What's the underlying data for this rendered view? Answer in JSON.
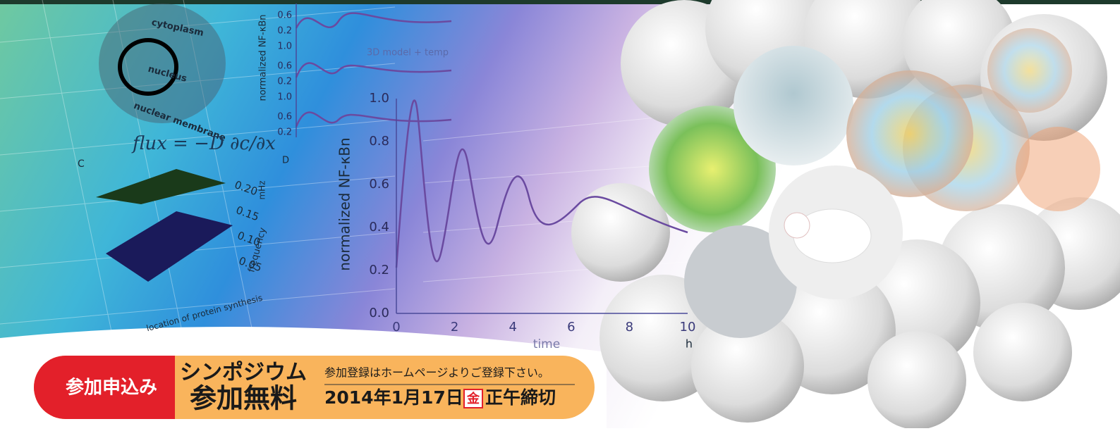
{
  "figure": {
    "cell_labels": {
      "cytoplasm": "cytoplasm",
      "nucleus": "nucleus",
      "membrane": "nuclear membrane"
    },
    "equation": "flux = −D ∂c/∂x",
    "panel_c": "C",
    "panel_d": "D",
    "y_label": "normalized NF-κBn",
    "small_y_label": "normalized NF-κBn",
    "legend": "3D model + temp",
    "x_label": "time",
    "x_unit": "h",
    "xticks": [
      "0",
      "2",
      "4",
      "6",
      "8",
      "10"
    ],
    "yticks": [
      "0.0",
      "0.2",
      "0.4",
      "0.6",
      "0.8",
      "1.0"
    ],
    "small_yticks": [
      "0.6",
      "0.2",
      "1.0",
      "0.6",
      "0.2",
      "1.0",
      "0.6",
      "0.2"
    ],
    "freq_ticks": [
      "0.20",
      "0.15",
      "0.10",
      "0.05"
    ],
    "freq_unit": "mHz",
    "freq_label": "frequency",
    "location_label": "location of protein synthesis"
  },
  "banner": {
    "badge": "参加申込み",
    "title_line1": "シンポジウム",
    "title_line2": "参加無料",
    "note": "参加登録はホームページよりご登録下さい。",
    "deadline_date": "2014年1月17日",
    "deadline_day": "金",
    "deadline_time": "正午締切"
  }
}
